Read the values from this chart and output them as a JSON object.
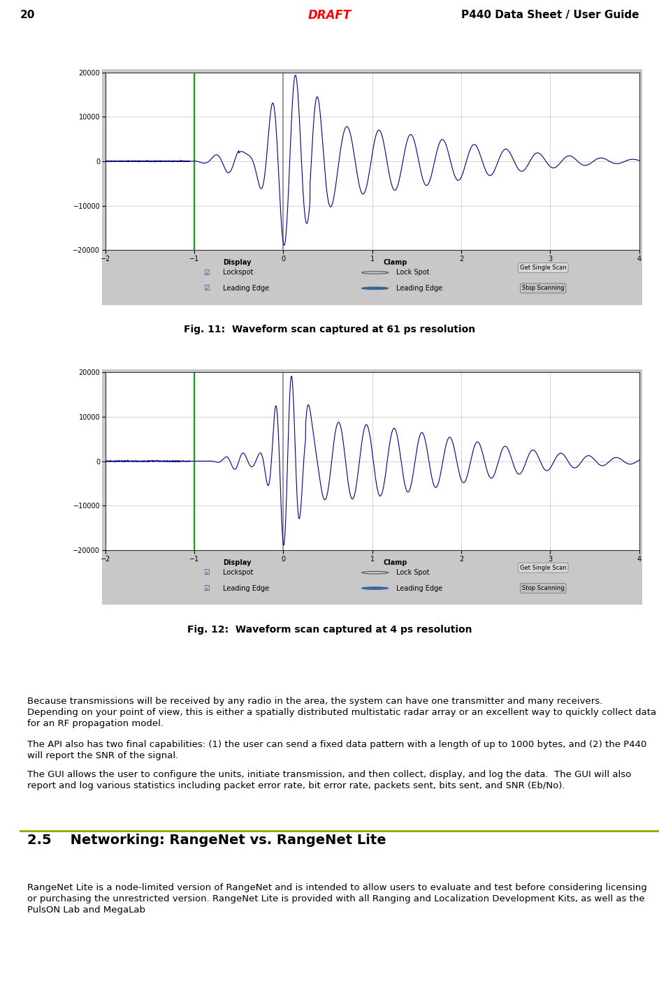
{
  "page_number": "20",
  "draft_text": "DRAFT",
  "title_text": "P440 Data Sheet / User Guide",
  "header_line_color": "#8aaa00",
  "draft_color": "#ff0000",
  "fig11_caption": "Fig. 11:  Waveform scan captured at 61 ps resolution",
  "fig12_caption": "Fig. 12:  Waveform scan captured at 4 ps resolution",
  "waveform_color": "#00008B",
  "green_line_color": "#00aa00",
  "gray_line_color": "#888888",
  "ylim": [
    -20000,
    20000
  ],
  "xlim": [
    -2,
    4
  ],
  "yticks": [
    -20000,
    -10000,
    0,
    10000,
    20000
  ],
  "xticks": [
    -2,
    -1,
    0,
    1,
    2,
    3,
    4
  ],
  "grid_color": "#cccccc",
  "panel_bg": "#e8e8e8",
  "outer_bg": "#d8d8d8",
  "plot_bg": "#ffffff",
  "body_text_1": "Because transmissions will be received by any radio in the area, the system can have one transmitter and many receivers.  Depending on your point of view, this is either a spatially distributed multistatic radar array or an excellent way to quickly collect data for an RF propagation model.",
  "body_text_2": "The API also has two final capabilities: (1) the user can send a fixed data pattern with a length of up to 1000 bytes, and (2) the P440 will report the SNR of the signal.",
  "body_text_3": "The GUI allows the user to configure the units, initiate transmission, and then collect, display, and log the data.  The GUI will also report and log various statistics including packet error rate, bit error rate, packets sent, bits sent, and SNR (Eb/No).",
  "section_title": "2.5    Networking: RangeNet vs. RangeNet Lite",
  "section_body": "RangeNet Lite is a node-limited version of RangeNet and is intended to allow users to evaluate and test before considering licensing or purchasing the unrestricted version. RangeNet Lite is provided with all Ranging and Localization Development Kits, as well as the PulsON Lab and MegaLab",
  "background_color": "#ffffff"
}
